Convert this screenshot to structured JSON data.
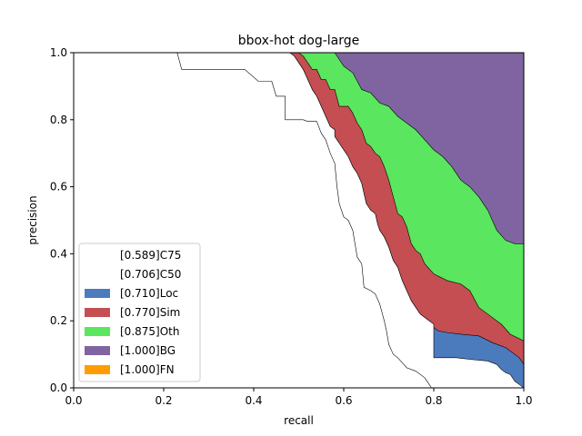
{
  "chart_data": {
    "type": "area",
    "title": "bbox-hot dog-large",
    "xlabel": "recall",
    "ylabel": "precision",
    "xlim": [
      0,
      1
    ],
    "ylim": [
      0,
      1
    ],
    "xticks": [
      "0.0",
      "0.2",
      "0.4",
      "0.6",
      "0.8",
      "1.0"
    ],
    "yticks": [
      "0.0",
      "0.2",
      "0.4",
      "0.6",
      "0.8",
      "1.0"
    ],
    "legend_position": "lower-left",
    "series": [
      {
        "name": "[0.589]C75",
        "color": "#ffffff",
        "points": [
          [
            0,
            1
          ],
          [
            0.23,
            1
          ],
          [
            0.24,
            0.95
          ],
          [
            0.38,
            0.95
          ],
          [
            0.41,
            0.915
          ],
          [
            0.44,
            0.915
          ],
          [
            0.45,
            0.87
          ],
          [
            0.47,
            0.87
          ],
          [
            0.47,
            0.8
          ],
          [
            0.51,
            0.8
          ],
          [
            0.52,
            0.795
          ],
          [
            0.54,
            0.795
          ],
          [
            0.55,
            0.76
          ],
          [
            0.56,
            0.74
          ],
          [
            0.57,
            0.7
          ],
          [
            0.58,
            0.67
          ],
          [
            0.585,
            0.6
          ],
          [
            0.59,
            0.55
          ],
          [
            0.6,
            0.51
          ],
          [
            0.61,
            0.5
          ],
          [
            0.62,
            0.47
          ],
          [
            0.625,
            0.43
          ],
          [
            0.63,
            0.39
          ],
          [
            0.64,
            0.37
          ],
          [
            0.645,
            0.3
          ],
          [
            0.66,
            0.29
          ],
          [
            0.67,
            0.28
          ],
          [
            0.68,
            0.25
          ],
          [
            0.69,
            0.2
          ],
          [
            0.695,
            0.17
          ],
          [
            0.7,
            0.13
          ],
          [
            0.71,
            0.1
          ],
          [
            0.72,
            0.09
          ],
          [
            0.73,
            0.075
          ],
          [
            0.74,
            0.06
          ],
          [
            0.76,
            0.05
          ],
          [
            0.78,
            0.03
          ],
          [
            0.79,
            0.01
          ],
          [
            0.795,
            0
          ],
          [
            1,
            0
          ]
        ]
      },
      {
        "name": "[0.706]C50",
        "color": "#ffffff",
        "points": [
          [
            0,
            1
          ],
          [
            0.48,
            1
          ],
          [
            0.49,
            0.99
          ],
          [
            0.5,
            0.97
          ],
          [
            0.51,
            0.95
          ],
          [
            0.52,
            0.92
          ],
          [
            0.53,
            0.89
          ],
          [
            0.54,
            0.87
          ],
          [
            0.55,
            0.84
          ],
          [
            0.56,
            0.81
          ],
          [
            0.57,
            0.78
          ],
          [
            0.58,
            0.77
          ],
          [
            0.58,
            0.75
          ],
          [
            0.59,
            0.73
          ],
          [
            0.6,
            0.71
          ],
          [
            0.61,
            0.69
          ],
          [
            0.62,
            0.66
          ],
          [
            0.63,
            0.64
          ],
          [
            0.64,
            0.61
          ],
          [
            0.645,
            0.58
          ],
          [
            0.65,
            0.55
          ],
          [
            0.66,
            0.53
          ],
          [
            0.67,
            0.52
          ],
          [
            0.675,
            0.49
          ],
          [
            0.68,
            0.47
          ],
          [
            0.69,
            0.45
          ],
          [
            0.7,
            0.42
          ],
          [
            0.705,
            0.4
          ],
          [
            0.71,
            0.38
          ],
          [
            0.72,
            0.36
          ],
          [
            0.73,
            0.32
          ],
          [
            0.74,
            0.29
          ],
          [
            0.75,
            0.26
          ],
          [
            0.76,
            0.24
          ],
          [
            0.77,
            0.22
          ],
          [
            0.78,
            0.21
          ],
          [
            0.79,
            0.2
          ],
          [
            0.8,
            0.19
          ],
          [
            0.8,
            0.09
          ],
          [
            0.82,
            0.09
          ],
          [
            0.85,
            0.09
          ],
          [
            0.88,
            0.085
          ],
          [
            0.92,
            0.08
          ],
          [
            0.94,
            0.07
          ],
          [
            0.95,
            0.055
          ],
          [
            0.96,
            0.045
          ],
          [
            0.97,
            0.04
          ],
          [
            0.98,
            0.02
          ],
          [
            0.99,
            0.01
          ],
          [
            1,
            0
          ]
        ]
      },
      {
        "name": "[0.710]Loc",
        "color": "#4c7bbd",
        "points": [
          [
            0,
            1
          ],
          [
            0.48,
            1
          ],
          [
            0.49,
            0.99
          ],
          [
            0.5,
            0.97
          ],
          [
            0.51,
            0.95
          ],
          [
            0.52,
            0.92
          ],
          [
            0.53,
            0.89
          ],
          [
            0.54,
            0.87
          ],
          [
            0.55,
            0.84
          ],
          [
            0.56,
            0.81
          ],
          [
            0.57,
            0.78
          ],
          [
            0.58,
            0.77
          ],
          [
            0.58,
            0.75
          ],
          [
            0.59,
            0.73
          ],
          [
            0.6,
            0.71
          ],
          [
            0.61,
            0.69
          ],
          [
            0.62,
            0.66
          ],
          [
            0.63,
            0.64
          ],
          [
            0.64,
            0.61
          ],
          [
            0.645,
            0.58
          ],
          [
            0.65,
            0.55
          ],
          [
            0.66,
            0.53
          ],
          [
            0.67,
            0.52
          ],
          [
            0.675,
            0.49
          ],
          [
            0.68,
            0.47
          ],
          [
            0.69,
            0.45
          ],
          [
            0.7,
            0.42
          ],
          [
            0.705,
            0.4
          ],
          [
            0.71,
            0.38
          ],
          [
            0.72,
            0.36
          ],
          [
            0.73,
            0.32
          ],
          [
            0.74,
            0.29
          ],
          [
            0.75,
            0.26
          ],
          [
            0.76,
            0.24
          ],
          [
            0.77,
            0.22
          ],
          [
            0.78,
            0.21
          ],
          [
            0.79,
            0.2
          ],
          [
            0.8,
            0.18
          ],
          [
            0.81,
            0.17
          ],
          [
            0.83,
            0.165
          ],
          [
            0.86,
            0.16
          ],
          [
            0.9,
            0.155
          ],
          [
            0.93,
            0.135
          ],
          [
            0.96,
            0.12
          ],
          [
            0.99,
            0.09
          ],
          [
            1,
            0.07
          ],
          [
            1,
            0
          ]
        ]
      },
      {
        "name": "[0.770]Sim",
        "color": "#c44e52",
        "points": [
          [
            0,
            1
          ],
          [
            0.48,
            1
          ],
          [
            0.49,
            1
          ],
          [
            0.5,
            1
          ],
          [
            0.51,
            0.99
          ],
          [
            0.52,
            0.97
          ],
          [
            0.53,
            0.95
          ],
          [
            0.54,
            0.95
          ],
          [
            0.55,
            0.92
          ],
          [
            0.56,
            0.92
          ],
          [
            0.57,
            0.89
          ],
          [
            0.58,
            0.89
          ],
          [
            0.59,
            0.84
          ],
          [
            0.6,
            0.84
          ],
          [
            0.61,
            0.84
          ],
          [
            0.62,
            0.82
          ],
          [
            0.63,
            0.79
          ],
          [
            0.64,
            0.77
          ],
          [
            0.65,
            0.73
          ],
          [
            0.66,
            0.72
          ],
          [
            0.67,
            0.7
          ],
          [
            0.68,
            0.69
          ],
          [
            0.69,
            0.66
          ],
          [
            0.7,
            0.62
          ],
          [
            0.71,
            0.57
          ],
          [
            0.72,
            0.52
          ],
          [
            0.73,
            0.51
          ],
          [
            0.74,
            0.48
          ],
          [
            0.75,
            0.43
          ],
          [
            0.76,
            0.41
          ],
          [
            0.77,
            0.4
          ],
          [
            0.78,
            0.37
          ],
          [
            0.8,
            0.34
          ],
          [
            0.83,
            0.32
          ],
          [
            0.86,
            0.31
          ],
          [
            0.88,
            0.29
          ],
          [
            0.9,
            0.24
          ],
          [
            0.92,
            0.22
          ],
          [
            0.95,
            0.19
          ],
          [
            0.97,
            0.16
          ],
          [
            1,
            0.14
          ],
          [
            1,
            0
          ]
        ]
      },
      {
        "name": "[0.875]Oth",
        "color": "#5ae65e",
        "points": [
          [
            0,
            1
          ],
          [
            0.48,
            1
          ],
          [
            0.55,
            1
          ],
          [
            0.58,
            1
          ],
          [
            0.6,
            0.96
          ],
          [
            0.62,
            0.94
          ],
          [
            0.64,
            0.89
          ],
          [
            0.66,
            0.88
          ],
          [
            0.68,
            0.85
          ],
          [
            0.7,
            0.84
          ],
          [
            0.72,
            0.81
          ],
          [
            0.74,
            0.79
          ],
          [
            0.76,
            0.77
          ],
          [
            0.78,
            0.74
          ],
          [
            0.8,
            0.71
          ],
          [
            0.82,
            0.69
          ],
          [
            0.84,
            0.66
          ],
          [
            0.86,
            0.62
          ],
          [
            0.88,
            0.6
          ],
          [
            0.9,
            0.57
          ],
          [
            0.92,
            0.53
          ],
          [
            0.94,
            0.47
          ],
          [
            0.96,
            0.44
          ],
          [
            0.98,
            0.43
          ],
          [
            1,
            0.43
          ],
          [
            1,
            0
          ]
        ]
      },
      {
        "name": "[1.000]BG",
        "color": "#8064a2",
        "points": [
          [
            0,
            1
          ],
          [
            1,
            1
          ],
          [
            1,
            0
          ]
        ]
      },
      {
        "name": "[1.000]FN",
        "color": "#ff9d00",
        "points": []
      }
    ]
  }
}
